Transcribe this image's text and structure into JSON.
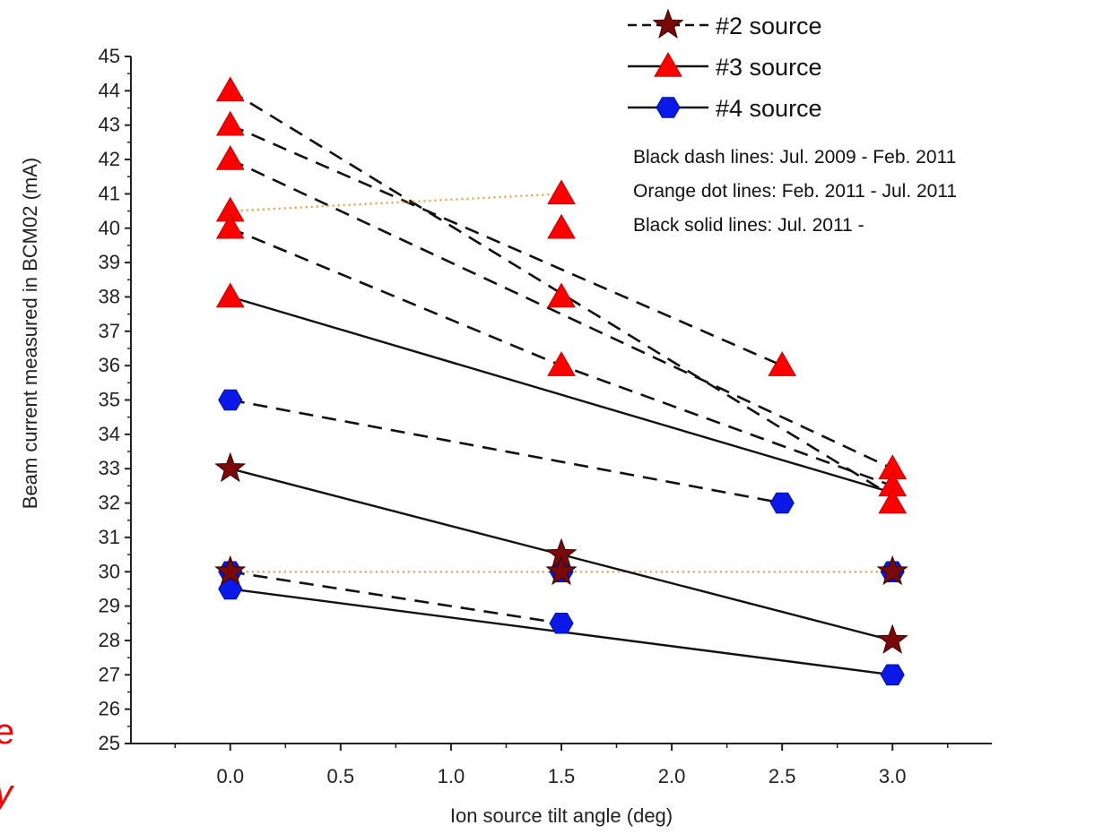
{
  "chart_data": {
    "type": "scatter",
    "xlabel": "Ion source tilt angle (deg)",
    "ylabel": "Beam current measured in BCM02 (mA)",
    "xlim": [
      -0.45,
      3.45
    ],
    "ylim": [
      25,
      45
    ],
    "xticks": [
      "0.0",
      "0.5",
      "1.0",
      "1.5",
      "2.0",
      "2.5",
      "3.0"
    ],
    "yticks": [
      "25",
      "26",
      "27",
      "28",
      "29",
      "30",
      "31",
      "32",
      "33",
      "34",
      "35",
      "36",
      "37",
      "38",
      "39",
      "40",
      "41",
      "42",
      "43",
      "44",
      "45"
    ],
    "legend_position": "top-right",
    "legend": [
      {
        "label": "#2 source",
        "marker": "star",
        "color": "#7a0a0a"
      },
      {
        "label": "#3 source",
        "marker": "triangle",
        "color": "#ff0000"
      },
      {
        "label": "#4 source",
        "marker": "hexagon",
        "color": "#0a18e8"
      }
    ],
    "notes": [
      "Black dash lines: Jul. 2009 - Feb. 2011",
      "Orange dot lines:  Feb. 2011 - Jul. 2011",
      "Black solid lines: Jul. 2011 -"
    ],
    "line_colors": {
      "dash": "#111111",
      "dot": "#f39c3c",
      "solid": "#111111"
    },
    "segments": [
      {
        "style": "dash",
        "x": [
          0.0,
          3.0
        ],
        "y": [
          44,
          32.2
        ]
      },
      {
        "style": "dash",
        "x": [
          0.0,
          2.5
        ],
        "y": [
          43,
          36
        ]
      },
      {
        "style": "dash",
        "x": [
          0.0,
          3.0
        ],
        "y": [
          42,
          33
        ]
      },
      {
        "style": "dash",
        "x": [
          0.0,
          1.5,
          3.0
        ],
        "y": [
          40,
          36,
          32.5
        ]
      },
      {
        "style": "dash",
        "x": [
          0.0,
          2.5
        ],
        "y": [
          35,
          32
        ]
      },
      {
        "style": "dash",
        "x": [
          0.0,
          1.5
        ],
        "y": [
          30,
          28.5
        ]
      },
      {
        "style": "dot",
        "x": [
          0.0,
          1.5
        ],
        "y": [
          40.5,
          41
        ]
      },
      {
        "style": "dot",
        "x": [
          0.0,
          3.0
        ],
        "y": [
          30,
          30
        ]
      },
      {
        "style": "solid",
        "x": [
          0.0,
          3.0
        ],
        "y": [
          38,
          32.3
        ]
      },
      {
        "style": "solid",
        "x": [
          0.0,
          3.0
        ],
        "y": [
          33,
          28
        ]
      },
      {
        "style": "solid",
        "x": [
          0.0,
          3.0
        ],
        "y": [
          29.5,
          27
        ]
      }
    ],
    "series": [
      {
        "name": "#2 source",
        "marker": "star",
        "color": "#7a0a0a",
        "x": [
          0.0,
          0.0,
          1.5,
          1.5,
          3.0,
          3.0
        ],
        "y": [
          33,
          30,
          30.5,
          30,
          28,
          30
        ]
      },
      {
        "name": "#3 source",
        "marker": "triangle",
        "color": "#ff0000",
        "x": [
          0.0,
          0.0,
          0.0,
          0.0,
          0.0,
          0.0,
          1.5,
          1.5,
          1.5,
          1.5,
          2.5,
          3.0,
          3.0,
          3.0
        ],
        "y": [
          44,
          43,
          42,
          40.5,
          40,
          38,
          41,
          40,
          38,
          36,
          36,
          33,
          32.5,
          32
        ]
      },
      {
        "name": "#4 source",
        "marker": "hexagon",
        "color": "#0a18e8",
        "x": [
          0.0,
          0.0,
          0.0,
          1.5,
          1.5,
          2.5,
          3.0,
          3.0
        ],
        "y": [
          35,
          30,
          29.5,
          30,
          28.5,
          32,
          30,
          27
        ]
      }
    ]
  },
  "edge_fragments": [
    "e",
    "y"
  ]
}
